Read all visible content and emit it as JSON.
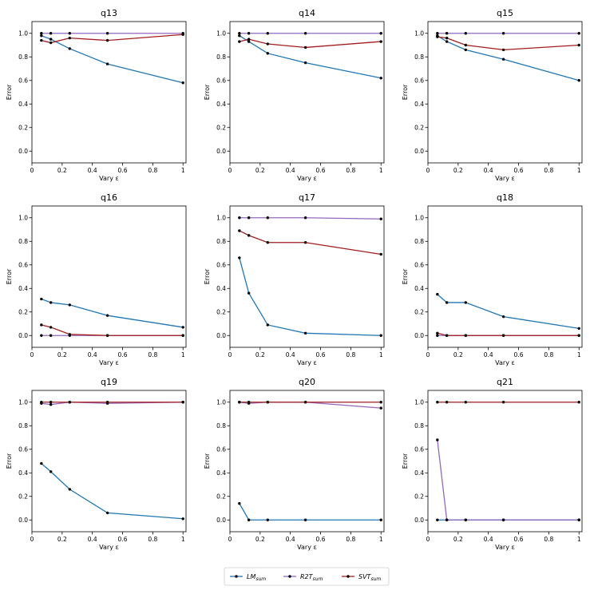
{
  "chart_data": [
    {
      "title": "q13",
      "type": "line",
      "xlabel": "Vary ε",
      "ylabel": "Error",
      "x": [
        0.0625,
        0.125,
        0.25,
        0.5,
        1
      ],
      "xticks": [
        "0",
        "0.2",
        "0.4",
        "0.6",
        "0.8",
        "1"
      ],
      "yticks": [
        "0.0",
        "0.2",
        "0.4",
        "0.6",
        "0.8",
        "1.0"
      ],
      "xlim": [
        0,
        1.02
      ],
      "ylim": [
        -0.1,
        1.1
      ],
      "series": [
        {
          "name": "LM_sum",
          "values": [
            0.98,
            0.95,
            0.87,
            0.74,
            0.58
          ]
        },
        {
          "name": "R2T_sum",
          "values": [
            1.0,
            1.0,
            1.0,
            1.0,
            1.0
          ]
        },
        {
          "name": "SVT_sum",
          "values": [
            0.94,
            0.92,
            0.96,
            0.94,
            0.99
          ]
        }
      ]
    },
    {
      "title": "q14",
      "type": "line",
      "xlabel": "Vary ε",
      "ylabel": "Error",
      "x": [
        0.0625,
        0.125,
        0.25,
        0.5,
        1
      ],
      "xticks": [
        "0",
        "0.2",
        "0.4",
        "0.6",
        "0.8",
        "1"
      ],
      "yticks": [
        "0.0",
        "0.2",
        "0.4",
        "0.6",
        "0.8",
        "1.0"
      ],
      "xlim": [
        0,
        1.02
      ],
      "ylim": [
        -0.1,
        1.1
      ],
      "series": [
        {
          "name": "LM_sum",
          "values": [
            0.98,
            0.93,
            0.83,
            0.75,
            0.62
          ]
        },
        {
          "name": "R2T_sum",
          "values": [
            1.0,
            1.0,
            1.0,
            1.0,
            1.0
          ]
        },
        {
          "name": "SVT_sum",
          "values": [
            0.93,
            0.95,
            0.91,
            0.88,
            0.93
          ]
        }
      ]
    },
    {
      "title": "q15",
      "type": "line",
      "xlabel": "Vary ε",
      "ylabel": "Error",
      "x": [
        0.0625,
        0.125,
        0.25,
        0.5,
        1
      ],
      "xticks": [
        "0",
        "0.2",
        "0.4",
        "0.6",
        "0.8",
        "1"
      ],
      "yticks": [
        "0.0",
        "0.2",
        "0.4",
        "0.6",
        "0.8",
        "1.0"
      ],
      "xlim": [
        0,
        1.02
      ],
      "ylim": [
        -0.1,
        1.1
      ],
      "series": [
        {
          "name": "LM_sum",
          "values": [
            0.98,
            0.93,
            0.86,
            0.78,
            0.6
          ]
        },
        {
          "name": "R2T_sum",
          "values": [
            1.0,
            1.0,
            1.0,
            1.0,
            1.0
          ]
        },
        {
          "name": "SVT_sum",
          "values": [
            0.97,
            0.96,
            0.9,
            0.86,
            0.9
          ]
        }
      ]
    },
    {
      "title": "q16",
      "type": "line",
      "xlabel": "Vary ε",
      "ylabel": "Error",
      "x": [
        0.0625,
        0.125,
        0.25,
        0.5,
        1
      ],
      "xticks": [
        "0",
        "0.2",
        "0.4",
        "0.6",
        "0.8",
        "1"
      ],
      "yticks": [
        "0.0",
        "0.2",
        "0.4",
        "0.6",
        "0.8",
        "1.0"
      ],
      "xlim": [
        0,
        1.02
      ],
      "ylim": [
        -0.1,
        1.1
      ],
      "series": [
        {
          "name": "LM_sum",
          "values": [
            0.31,
            0.28,
            0.26,
            0.17,
            0.07
          ]
        },
        {
          "name": "R2T_sum",
          "values": [
            0.0,
            0.0,
            0.0,
            0.0,
            0.0
          ]
        },
        {
          "name": "SVT_sum",
          "values": [
            0.09,
            0.07,
            0.01,
            0.0,
            0.0
          ]
        }
      ]
    },
    {
      "title": "q17",
      "type": "line",
      "xlabel": "Vary ε",
      "ylabel": "Error",
      "x": [
        0.0625,
        0.125,
        0.25,
        0.5,
        1
      ],
      "xticks": [
        "0",
        "0.2",
        "0.4",
        "0.6",
        "0.8",
        "1"
      ],
      "yticks": [
        "0.0",
        "0.2",
        "0.4",
        "0.6",
        "0.8",
        "1.0"
      ],
      "xlim": [
        0,
        1.02
      ],
      "ylim": [
        -0.1,
        1.1
      ],
      "series": [
        {
          "name": "LM_sum",
          "values": [
            0.66,
            0.36,
            0.09,
            0.02,
            0.0
          ]
        },
        {
          "name": "R2T_sum",
          "values": [
            1.0,
            1.0,
            1.0,
            1.0,
            0.99
          ]
        },
        {
          "name": "SVT_sum",
          "values": [
            0.89,
            0.85,
            0.79,
            0.79,
            0.69
          ]
        }
      ]
    },
    {
      "title": "q18",
      "type": "line",
      "xlabel": "Vary ε",
      "ylabel": "Error",
      "x": [
        0.0625,
        0.125,
        0.25,
        0.5,
        1
      ],
      "xticks": [
        "0",
        "0.2",
        "0.4",
        "0.6",
        "0.8",
        "1"
      ],
      "yticks": [
        "0.0",
        "0.2",
        "0.4",
        "0.6",
        "0.8",
        "1.0"
      ],
      "xlim": [
        0,
        1.02
      ],
      "ylim": [
        -0.1,
        1.1
      ],
      "series": [
        {
          "name": "LM_sum",
          "values": [
            0.35,
            0.28,
            0.28,
            0.16,
            0.06
          ]
        },
        {
          "name": "R2T_sum",
          "values": [
            0.0,
            0.0,
            0.0,
            0.0,
            0.0
          ]
        },
        {
          "name": "SVT_sum",
          "values": [
            0.02,
            0.0,
            0.0,
            0.0,
            0.0
          ]
        }
      ]
    },
    {
      "title": "q19",
      "type": "line",
      "xlabel": "Vary ε",
      "ylabel": "Error",
      "x": [
        0.0625,
        0.125,
        0.25,
        0.5,
        1
      ],
      "xticks": [
        "0",
        "0.2",
        "0.4",
        "0.6",
        "0.8",
        "1"
      ],
      "yticks": [
        "0.0",
        "0.2",
        "0.4",
        "0.6",
        "0.8",
        "1.0"
      ],
      "xlim": [
        0,
        1.02
      ],
      "ylim": [
        -0.1,
        1.1
      ],
      "series": [
        {
          "name": "LM_sum",
          "values": [
            0.48,
            0.41,
            0.26,
            0.06,
            0.01
          ]
        },
        {
          "name": "R2T_sum",
          "values": [
            0.99,
            0.98,
            1.0,
            0.99,
            1.0
          ]
        },
        {
          "name": "SVT_sum",
          "values": [
            1.0,
            1.0,
            1.0,
            1.0,
            1.0
          ]
        }
      ]
    },
    {
      "title": "q20",
      "type": "line",
      "xlabel": "Vary ε",
      "ylabel": "Error",
      "x": [
        0.0625,
        0.125,
        0.25,
        0.5,
        1
      ],
      "xticks": [
        "0",
        "0.2",
        "0.4",
        "0.6",
        "0.8",
        "1"
      ],
      "yticks": [
        "0.0",
        "0.2",
        "0.4",
        "0.6",
        "0.8",
        "1.0"
      ],
      "xlim": [
        0,
        1.02
      ],
      "ylim": [
        -0.1,
        1.1
      ],
      "series": [
        {
          "name": "LM_sum",
          "values": [
            0.14,
            0.0,
            0.0,
            0.0,
            0.0
          ]
        },
        {
          "name": "R2T_sum",
          "values": [
            1.0,
            0.99,
            1.0,
            1.0,
            0.95
          ]
        },
        {
          "name": "SVT_sum",
          "values": [
            1.0,
            1.0,
            1.0,
            1.0,
            1.0
          ]
        }
      ]
    },
    {
      "title": "q21",
      "type": "line",
      "xlabel": "Vary ε",
      "ylabel": "Error",
      "x": [
        0.0625,
        0.125,
        0.25,
        0.5,
        1
      ],
      "xticks": [
        "0",
        "0.2",
        "0.4",
        "0.6",
        "0.8",
        "1"
      ],
      "yticks": [
        "0.0",
        "0.2",
        "0.4",
        "0.6",
        "0.8",
        "1.0"
      ],
      "xlim": [
        0,
        1.02
      ],
      "ylim": [
        -0.1,
        1.1
      ],
      "series": [
        {
          "name": "LM_sum",
          "values": [
            0.0,
            0.0,
            0.0,
            0.0,
            0.0
          ]
        },
        {
          "name": "R2T_sum",
          "values": [
            0.68,
            0.0,
            0.0,
            0.0,
            0.0
          ]
        },
        {
          "name": "SVT_sum",
          "values": [
            1.0,
            1.0,
            1.0,
            1.0,
            1.0
          ]
        }
      ]
    }
  ],
  "legend": {
    "placement": "bottom-center",
    "entries": [
      {
        "name": "LM_sum",
        "base": "LM",
        "sub": "sum",
        "color": "#1f77b4"
      },
      {
        "name": "R2T_sum",
        "base": "R2T",
        "sub": "sum",
        "color": "#9467bd"
      },
      {
        "name": "SVT_sum",
        "base": "SVT",
        "sub": "sum",
        "color": "#a31d1d"
      }
    ]
  },
  "colors": {
    "LM_sum": "#1f77b4",
    "R2T_sum": "#9467bd",
    "SVT_sum": "#a31d1d",
    "marker": "#000000",
    "axis": "#000000"
  }
}
